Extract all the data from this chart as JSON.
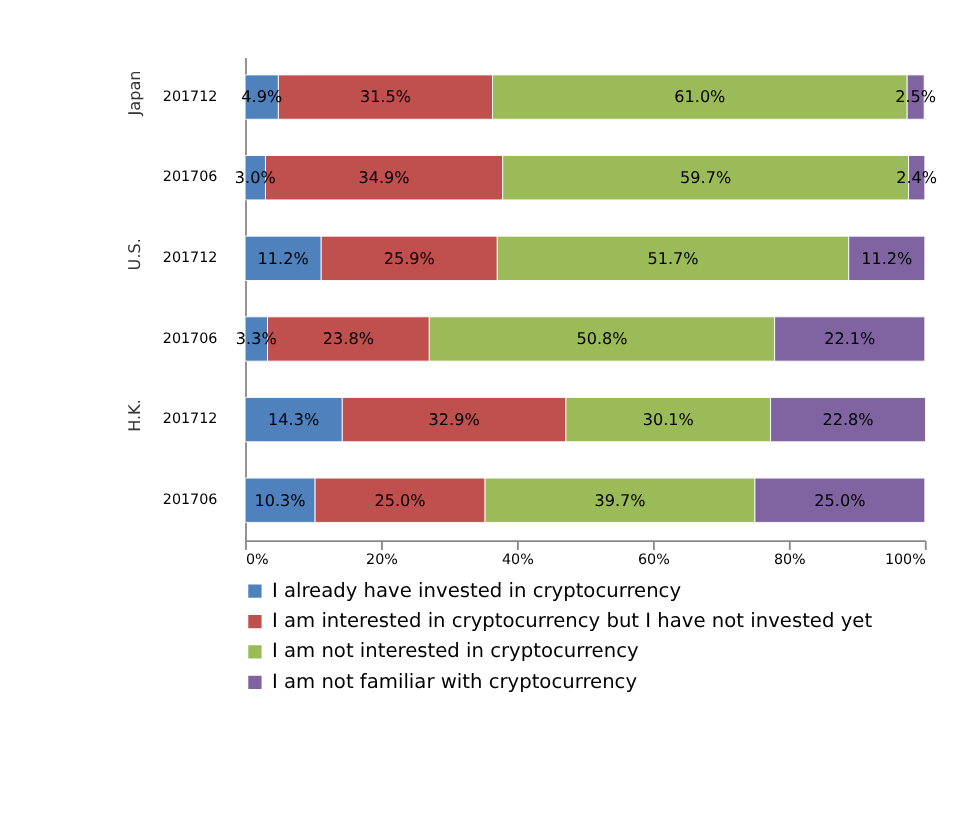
{
  "chart_data": {
    "type": "bar",
    "orientation": "horizontal",
    "stacked": true,
    "categories": [
      "201712",
      "201706",
      "201712",
      "201706",
      "201712",
      "201706"
    ],
    "series": [
      {
        "name": "I already have invested in cryptocurrency",
        "color": "#4f81bd",
        "values": [
          4.9,
          3.0,
          11.2,
          3.3,
          14.3,
          10.3
        ],
        "value_labels": [
          "4.9%",
          "3.0%",
          "11.2%",
          "3.3%",
          "14.3%",
          "10.3%"
        ]
      },
      {
        "name": "I am interested in cryptocurrency but I have not invested yet",
        "color": "#c0504d",
        "values": [
          31.5,
          34.9,
          25.9,
          23.8,
          32.9,
          25.0
        ],
        "value_labels": [
          "31.5%",
          "34.9%",
          "25.9%",
          "23.8%",
          "32.9%",
          "25.0%"
        ]
      },
      {
        "name": "I am not interested in cryptocurrency",
        "color": "#9bbb59",
        "values": [
          61.0,
          59.7,
          51.7,
          50.8,
          30.1,
          39.7
        ],
        "value_labels": [
          "61.0%",
          "59.7%",
          "51.7%",
          "50.8%",
          "30.1%",
          "39.7%"
        ]
      },
      {
        "name": "I am not familiar with cryptocurrency",
        "color": "#8064a2",
        "values": [
          2.5,
          2.4,
          11.2,
          22.1,
          22.8,
          25.0
        ],
        "value_labels": [
          "2.5%",
          "2.4%",
          "11.2%",
          "22.1%",
          "22.8%",
          "25.0%"
        ]
      }
    ],
    "xlim": [
      0,
      100
    ],
    "xticks": [
      {
        "value": 0,
        "label": "0%"
      },
      {
        "value": 20,
        "label": "20%"
      },
      {
        "value": 40,
        "label": "40%"
      },
      {
        "value": 60,
        "label": "60%"
      },
      {
        "value": 80,
        "label": "80%"
      },
      {
        "value": 100,
        "label": "100%"
      }
    ],
    "annotations": [
      "Japan",
      "U.S.",
      "H.K."
    ],
    "grid": false,
    "legend": "bottom"
  }
}
